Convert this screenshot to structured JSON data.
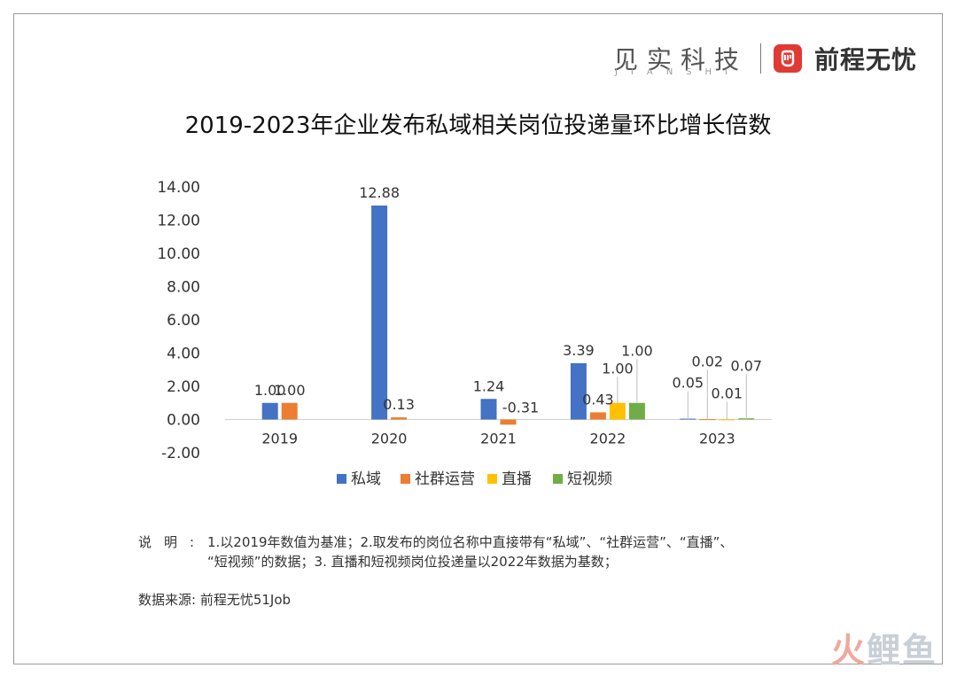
{
  "brand": {
    "jianshi": "见实科技",
    "jianshi_sub": "JIANSHI",
    "logo_glyph": "€",
    "job_name": "前程无忧"
  },
  "chart_data": {
    "type": "bar",
    "title": "2019-2023年企业发布私域相关岗位投递量环比增长倍数",
    "categories": [
      "2019",
      "2020",
      "2021",
      "2022",
      "2023"
    ],
    "series": [
      {
        "name": "私域",
        "color": "#4472c4",
        "values": [
          1.0,
          12.88,
          1.24,
          3.39,
          0.05
        ],
        "labels": [
          "1.00",
          "12.88",
          "1.24",
          "3.39",
          "0.05"
        ]
      },
      {
        "name": "社群运营",
        "color": "#ed7d31",
        "values": [
          1.0,
          0.13,
          -0.31,
          0.43,
          0.02
        ],
        "labels": [
          "1.00",
          "0.13",
          "-0.31",
          "0.43",
          "0.02"
        ]
      },
      {
        "name": "直播",
        "color": "#ffc000",
        "values": [
          null,
          null,
          null,
          1.0,
          0.01
        ],
        "labels": [
          "",
          "",
          "",
          "1.00",
          "0.01"
        ]
      },
      {
        "name": "短视频",
        "color": "#70ad47",
        "values": [
          null,
          null,
          null,
          1.0,
          0.07
        ],
        "labels": [
          "",
          "",
          "",
          "1.00",
          "0.07"
        ]
      }
    ],
    "ylim": [
      -2,
      14
    ],
    "yticks": [
      "14.00",
      "12.00",
      "10.00",
      "8.00",
      "6.00",
      "4.00",
      "2.00",
      "0.00",
      "-2.00"
    ],
    "ytick_values": [
      14,
      12,
      10,
      8,
      6,
      4,
      2,
      0,
      -2
    ],
    "legend_position": "bottom",
    "grid": false
  },
  "notes": {
    "label": "说明:",
    "line1": "1.以2019年数值为基准；2.取发布的岗位名称中直接带有“私域”、“社群运营”、“直播”、",
    "line2": "“短视频”的数据；3. 直播和短视频岗位投递量以2022年数据为基数；"
  },
  "source": "数据来源: 前程无忧51Job",
  "watermark": {
    "part1": "火",
    "part2": "鲤鱼"
  }
}
